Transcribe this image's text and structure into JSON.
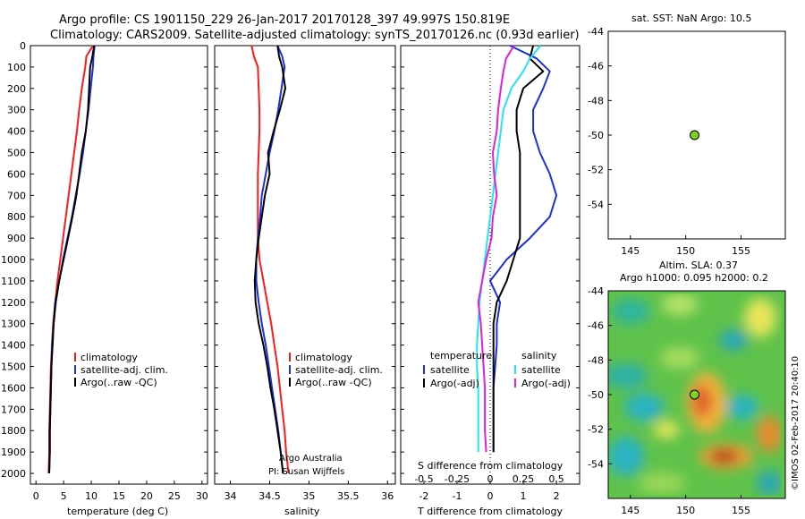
{
  "title": {
    "line1": "Argo profile: CS 1901150_229 26-Jan-2017 20170128_397 49.997S 150.819E",
    "line2": "Climatology: CARS2009. Satellite-adjusted climatology: synTS_20170126.nc (0.93d earlier)"
  },
  "colors": {
    "red": "#ff1a1a",
    "blue": "#1c2fe0",
    "black": "#000000",
    "cyan": "#22e6f0",
    "magenta": "#e01ee0",
    "dot": "#7ed321"
  },
  "credit": {
    "line1": "Argo Australia",
    "line2": "PI: Susan Wijffels"
  },
  "watermark": "©IMOS 02-Feb-2017 20:40:10",
  "chart_data": [
    {
      "type": "line",
      "panel": "temperature",
      "xlabel": "temperature (deg C)",
      "xlim": [
        -1,
        31
      ],
      "xticks": [
        "0",
        "5",
        "10",
        "15",
        "20",
        "25",
        "30"
      ],
      "ylim": [
        0,
        2050
      ],
      "ylabel": "",
      "yticks": [
        "0",
        "100",
        "200",
        "300",
        "400",
        "500",
        "600",
        "700",
        "800",
        "900",
        "1000",
        "1100",
        "1200",
        "1300",
        "1400",
        "1500",
        "1600",
        "1700",
        "1800",
        "1900",
        "2000"
      ],
      "legend": [
        "climatology",
        "satellite-adj. clim.",
        "Argo(..raw -QC)"
      ],
      "legend_position": "lower-middle",
      "series": [
        {
          "name": "climatology",
          "color": "red",
          "x": [
            10.3,
            9.1,
            8.9,
            8.3,
            7.8,
            7.4,
            6.9,
            6.4,
            5.9,
            5.4,
            4.9,
            4.4,
            3.9,
            3.5,
            3.1,
            2.9,
            2.7,
            2.6,
            2.5,
            2.4,
            2.4,
            2.3
          ],
          "y": [
            0,
            50,
            100,
            200,
            300,
            400,
            500,
            600,
            700,
            800,
            900,
            1000,
            1100,
            1200,
            1300,
            1400,
            1500,
            1600,
            1700,
            1800,
            1900,
            2000
          ]
        },
        {
          "name": "satellite-adj. clim.",
          "color": "blue",
          "x": [
            10.6,
            10.4,
            10.3,
            9.9,
            9.5,
            9.0,
            8.5,
            7.9,
            7.2,
            6.5,
            5.7,
            4.9,
            4.2,
            3.6,
            3.2,
            2.9,
            2.8,
            2.7,
            2.6,
            2.5,
            2.5,
            2.4
          ],
          "y": [
            0,
            50,
            100,
            200,
            300,
            400,
            500,
            600,
            700,
            800,
            900,
            1000,
            1100,
            1200,
            1300,
            1400,
            1500,
            1600,
            1700,
            1800,
            1900,
            2000
          ]
        },
        {
          "name": "Argo(..raw -QC)",
          "color": "black",
          "x": [
            10.5,
            10.2,
            9.8,
            9.6,
            9.4,
            9.0,
            8.3,
            7.8,
            7.3,
            6.6,
            5.8,
            5.0,
            4.2,
            3.5,
            3.2,
            3.0,
            2.8,
            2.7,
            2.6,
            2.5,
            2.5,
            2.4
          ],
          "y": [
            0,
            50,
            100,
            200,
            300,
            400,
            500,
            600,
            700,
            800,
            900,
            1000,
            1100,
            1200,
            1300,
            1400,
            1500,
            1600,
            1700,
            1800,
            1900,
            2000
          ]
        }
      ]
    },
    {
      "type": "line",
      "panel": "salinity",
      "xlabel": "salinity",
      "xlim": [
        33.8,
        36.1
      ],
      "xticks": [
        "34",
        "34.5",
        "35",
        "35.5",
        "36"
      ],
      "ylim": [
        0,
        2050
      ],
      "legend": [
        "climatology",
        "satellite-adj. clim.",
        "Argo(..raw -QC)"
      ],
      "legend_position": "lower-right",
      "series": [
        {
          "name": "climatology",
          "color": "red",
          "x": [
            34.27,
            34.3,
            34.35,
            34.36,
            34.37,
            34.37,
            34.36,
            34.35,
            34.35,
            34.35,
            34.35,
            34.37,
            34.42,
            34.47,
            34.52,
            34.56,
            34.6,
            34.63,
            34.66,
            34.69,
            34.71,
            34.74
          ],
          "y": [
            0,
            50,
            100,
            200,
            300,
            400,
            500,
            600,
            700,
            800,
            900,
            1000,
            1100,
            1200,
            1300,
            1400,
            1500,
            1600,
            1700,
            1800,
            1900,
            2000
          ]
        },
        {
          "name": "satellite-adj. clim.",
          "color": "blue",
          "x": [
            34.6,
            34.66,
            34.69,
            34.65,
            34.61,
            34.56,
            34.5,
            34.45,
            34.4,
            34.38,
            34.35,
            34.33,
            34.33,
            34.36,
            34.4,
            34.45,
            34.49,
            34.53,
            34.57,
            34.61,
            34.64,
            34.67
          ],
          "y": [
            0,
            50,
            100,
            200,
            300,
            400,
            500,
            600,
            700,
            800,
            900,
            1000,
            1100,
            1200,
            1300,
            1400,
            1500,
            1600,
            1700,
            1800,
            1900,
            2000
          ]
        },
        {
          "name": "Argo(..raw -QC)",
          "color": "black",
          "x": [
            34.6,
            34.62,
            34.66,
            34.7,
            34.63,
            34.55,
            34.48,
            34.5,
            34.44,
            34.4,
            34.36,
            34.33,
            34.31,
            34.32,
            34.36,
            34.42,
            34.47,
            34.51,
            34.56,
            34.6,
            34.64,
            34.67
          ],
          "y": [
            0,
            50,
            100,
            200,
            300,
            400,
            500,
            600,
            700,
            800,
            900,
            1000,
            1100,
            1200,
            1300,
            1400,
            1500,
            1600,
            1700,
            1800,
            1900,
            2000
          ]
        }
      ]
    },
    {
      "type": "line",
      "panel": "difference",
      "xlabel": "T difference from climatology",
      "xlabel2": "S difference from climatology",
      "xlim": [
        -2.7,
        2.7
      ],
      "xticks": [
        "-2",
        "-1",
        "0",
        "1",
        "2"
      ],
      "xticks2": [
        "-0.5",
        "-0.25",
        "0",
        "0.25",
        "0.5"
      ],
      "ylim": [
        0,
        2050
      ],
      "legend_temperature": {
        "heading": "temperature",
        "items": [
          "satellite",
          "Argo(-adj)"
        ]
      },
      "legend_salinity": {
        "heading": "salinity",
        "items": [
          "satellite",
          "Argo(-adj)"
        ]
      },
      "series": [
        {
          "name": "temperature satellite",
          "color": "blue",
          "x": [
            0.6,
            1.4,
            1.8,
            1.6,
            1.3,
            1.3,
            1.5,
            1.8,
            2.0,
            1.8,
            1.2,
            0.5,
            0.0,
            0.3,
            0.2,
            0.2,
            0.15,
            0.1,
            0.1,
            0.1,
            0.1
          ],
          "y": [
            0,
            60,
            120,
            200,
            300,
            400,
            500,
            600,
            700,
            800,
            900,
            1000,
            1100,
            1200,
            1300,
            1400,
            1500,
            1600,
            1700,
            1800,
            1900
          ]
        },
        {
          "name": "temperature Argo(-adj)",
          "color": "black",
          "x": [
            1.3,
            1.2,
            1.6,
            1.0,
            0.8,
            0.8,
            0.9,
            0.9,
            0.9,
            0.9,
            0.9,
            0.7,
            0.5,
            0.2,
            0.1,
            0.1,
            0.1,
            0.1,
            0.1,
            0.1,
            0.1
          ],
          "y": [
            0,
            60,
            120,
            200,
            300,
            400,
            500,
            600,
            700,
            800,
            900,
            1000,
            1100,
            1200,
            1300,
            1400,
            1500,
            1600,
            1700,
            1800,
            1900
          ]
        },
        {
          "name": "salinity satellite",
          "color": "cyan",
          "x": [
            0.38,
            0.3,
            0.25,
            0.16,
            0.1,
            0.08,
            0.06,
            0.04,
            0.02,
            0.0,
            -0.02,
            -0.04,
            -0.06,
            -0.08,
            -0.09,
            -0.1,
            -0.1,
            -0.09,
            -0.09,
            -0.09,
            -0.09
          ],
          "y": [
            0,
            60,
            120,
            200,
            300,
            400,
            500,
            600,
            700,
            800,
            900,
            1000,
            1100,
            1200,
            1300,
            1400,
            1500,
            1600,
            1700,
            1800,
            1900
          ]
        },
        {
          "name": "salinity Argo(-adj)",
          "color": "magenta",
          "x": [
            0.18,
            0.12,
            0.1,
            0.08,
            0.06,
            0.05,
            0.02,
            0.03,
            0.05,
            0.02,
            0.01,
            -0.03,
            -0.06,
            -0.09,
            -0.07,
            -0.06,
            -0.05,
            -0.04,
            -0.04,
            -0.04,
            -0.03
          ],
          "y": [
            0,
            60,
            120,
            200,
            300,
            400,
            500,
            600,
            700,
            800,
            900,
            1000,
            1100,
            1200,
            1300,
            1400,
            1500,
            1600,
            1700,
            1800,
            1900
          ]
        }
      ]
    },
    {
      "type": "scatter",
      "panel": "location",
      "title": "sat. SST: NaN Argo: 10.5",
      "xlim": [
        143,
        159
      ],
      "ylim": [
        -56,
        -44
      ],
      "xticks": [
        "145",
        "150",
        "155"
      ],
      "yticks": [
        "-44",
        "-46",
        "-48",
        "-50",
        "-52",
        "-54"
      ],
      "points": [
        {
          "x": 150.8,
          "y": -50.0
        }
      ]
    },
    {
      "type": "heatmap",
      "panel": "sla-map",
      "title": "Altim. SLA: 0.37",
      "subtitle": "Argo h1000: 0.095 h2000: 0.2",
      "xlim": [
        143,
        159
      ],
      "ylim": [
        -56,
        -44
      ],
      "xticks": [
        "145",
        "150",
        "155"
      ],
      "yticks": [
        "-44",
        "-46",
        "-48",
        "-50",
        "-52",
        "-54"
      ],
      "points": [
        {
          "x": 150.8,
          "y": -50.0
        }
      ]
    }
  ]
}
